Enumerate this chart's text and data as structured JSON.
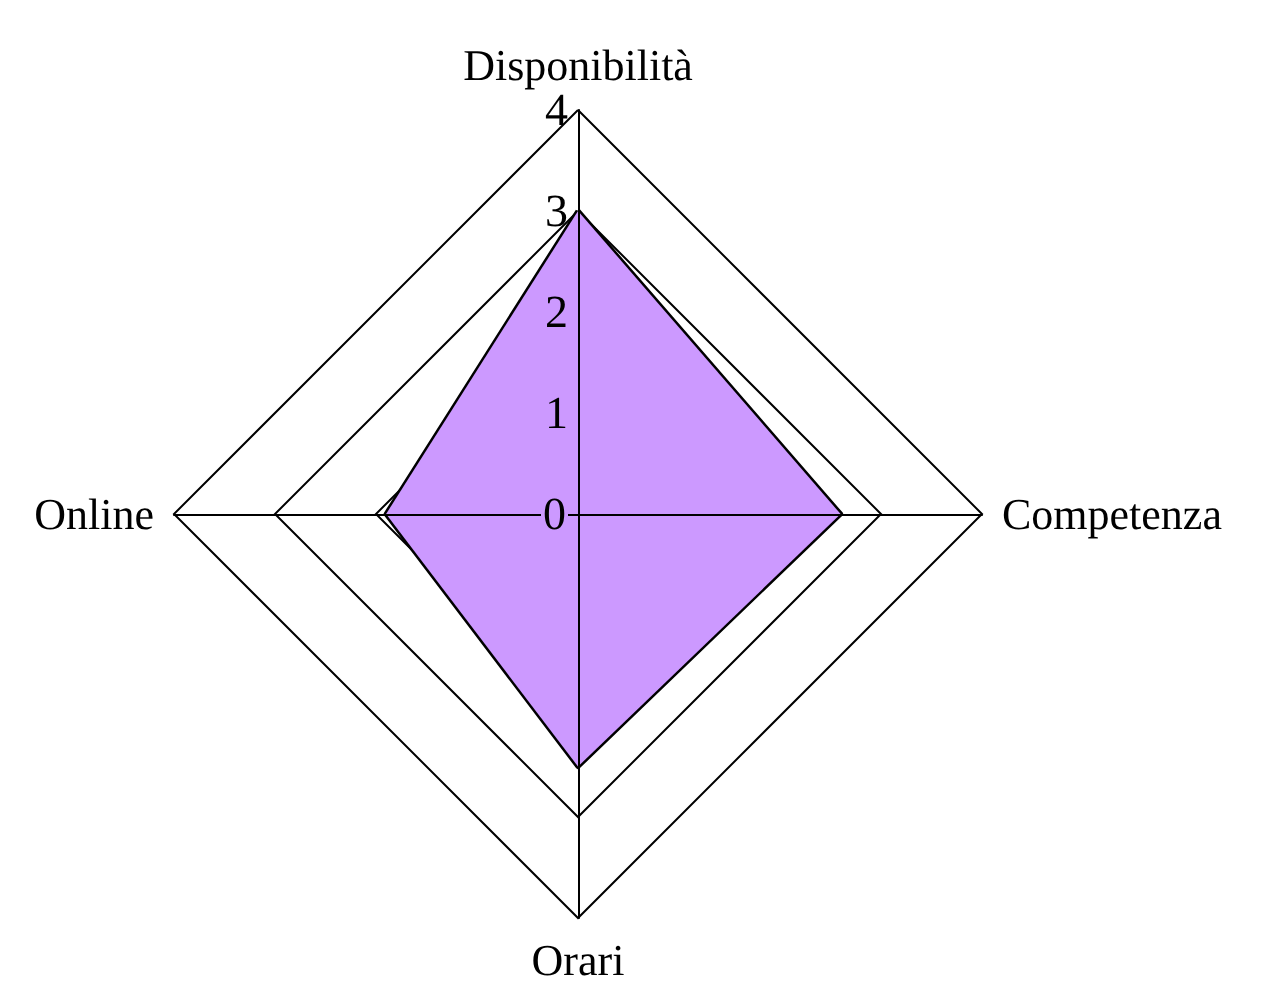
{
  "chart_data": {
    "type": "radar",
    "categories": [
      "Disponibilità",
      "Competenza",
      "Orari",
      "Online"
    ],
    "series": [
      {
        "color": "#cc99ff",
        "values": [
          3,
          2.6,
          2.5,
          1.9
        ]
      }
    ],
    "ylim": [
      0,
      4
    ],
    "yticks": [
      0,
      1,
      2,
      3,
      4
    ],
    "grid": true,
    "marker": "none"
  }
}
